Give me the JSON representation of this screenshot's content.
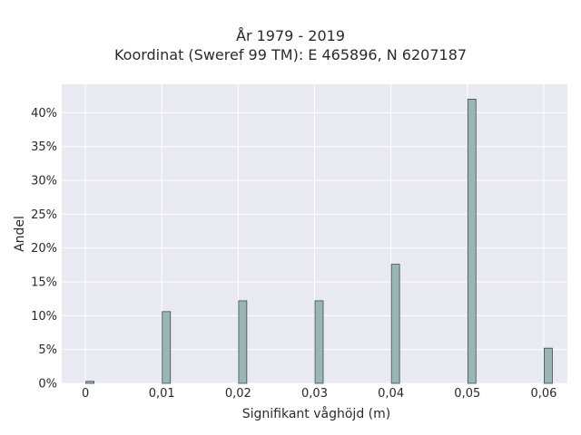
{
  "chart_data": {
    "type": "bar",
    "title_line1": "År 1979 - 2019",
    "title_line2": "Koordinat (Sweref 99 TM): E 465896, N 6207187",
    "xlabel": "Signifikant våghöjd (m)",
    "ylabel": "Andel",
    "x": [
      0.0,
      0.01,
      0.02,
      0.03,
      0.04,
      0.05,
      0.06
    ],
    "values": [
      0.3,
      10.6,
      12.2,
      12.2,
      17.6,
      42.0,
      5.2
    ],
    "xticks": [
      0.0,
      0.01,
      0.02,
      0.03,
      0.04,
      0.05,
      0.06
    ],
    "xtick_labels": [
      "0",
      "0,01",
      "0,02",
      "0,03",
      "0,04",
      "0,05",
      "0,06"
    ],
    "yticks": [
      0,
      5,
      10,
      15,
      20,
      25,
      30,
      35,
      40
    ],
    "ytick_labels": [
      "0%",
      "5%",
      "10%",
      "15%",
      "20%",
      "25%",
      "30%",
      "35%",
      "40%"
    ],
    "xlim": [
      -0.0031,
      0.0631
    ],
    "ylim": [
      0,
      44.2
    ],
    "grid": true,
    "colors": {
      "plot_background": "#e9e9f1",
      "bar_fill": "#9ab5b5",
      "bar_stroke": "#3c4a4a",
      "grid": "#ffffff"
    }
  }
}
